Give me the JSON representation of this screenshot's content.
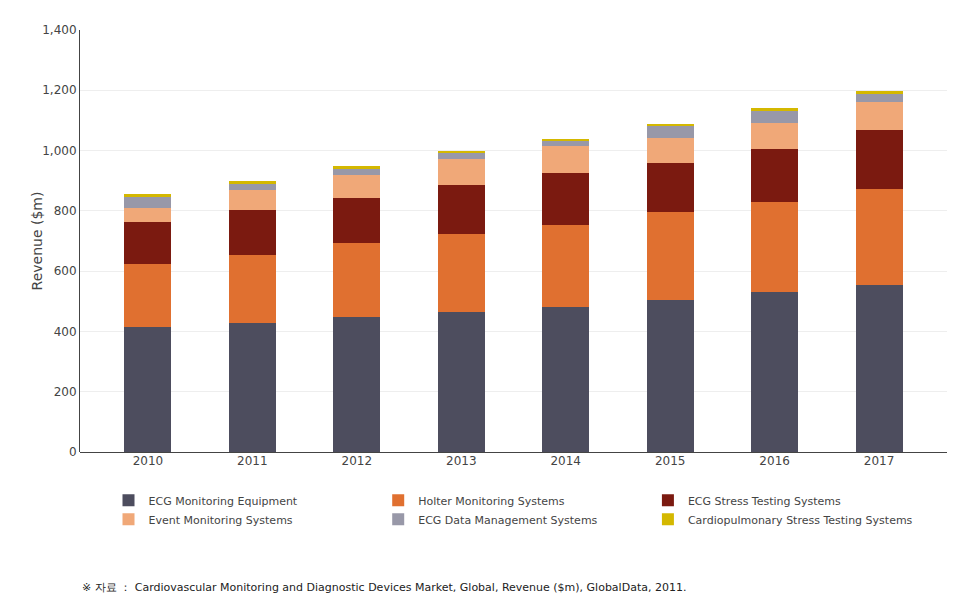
{
  "chart_data": {
    "type": "bar",
    "stacked": true,
    "categories": [
      "2010",
      "2011",
      "2012",
      "2013",
      "2014",
      "2015",
      "2016",
      "2017"
    ],
    "series": [
      {
        "name": "ECG Monitoring Equipment",
        "color": "#4d4d5e",
        "values": [
          415,
          427,
          447,
          465,
          480,
          505,
          530,
          555
        ]
      },
      {
        "name": "Holter Monitoring Systems",
        "color": "#e07030",
        "values": [
          210,
          228,
          248,
          258,
          272,
          290,
          300,
          318
        ]
      },
      {
        "name": "ECG Stress Testing Systems",
        "color": "#7b1a10",
        "values": [
          138,
          148,
          148,
          162,
          172,
          165,
          175,
          195
        ]
      },
      {
        "name": "Event Monitoring Systems",
        "color": "#f0a878",
        "values": [
          48,
          65,
          75,
          88,
          92,
          82,
          88,
          92
        ]
      },
      {
        "name": "ECG Data Management Systems",
        "color": "#9898a8",
        "values": [
          38,
          22,
          22,
          18,
          15,
          38,
          38,
          28
        ]
      },
      {
        "name": "Cardiopulmonary Stress Testing Systems",
        "color": "#d4b800",
        "values": [
          6,
          8,
          8,
          8,
          8,
          8,
          10,
          10
        ]
      }
    ],
    "ylabel": "Revenue ($m)",
    "ylim": [
      0,
      1400
    ],
    "yticks": [
      0,
      200,
      400,
      600,
      800,
      {
        "value": 1000,
        "label": "1,000"
      },
      {
        "value": 1200,
        "label": "1,200"
      },
      {
        "value": 1400,
        "label": "1,400"
      }
    ],
    "grid": true,
    "legend": "bottom",
    "annotations": [
      "※ 자료 ： Cardiovascular Monitoring and Diagnostic Devices Market, Global, Revenue ($m), GlobalData, 2011."
    ]
  }
}
